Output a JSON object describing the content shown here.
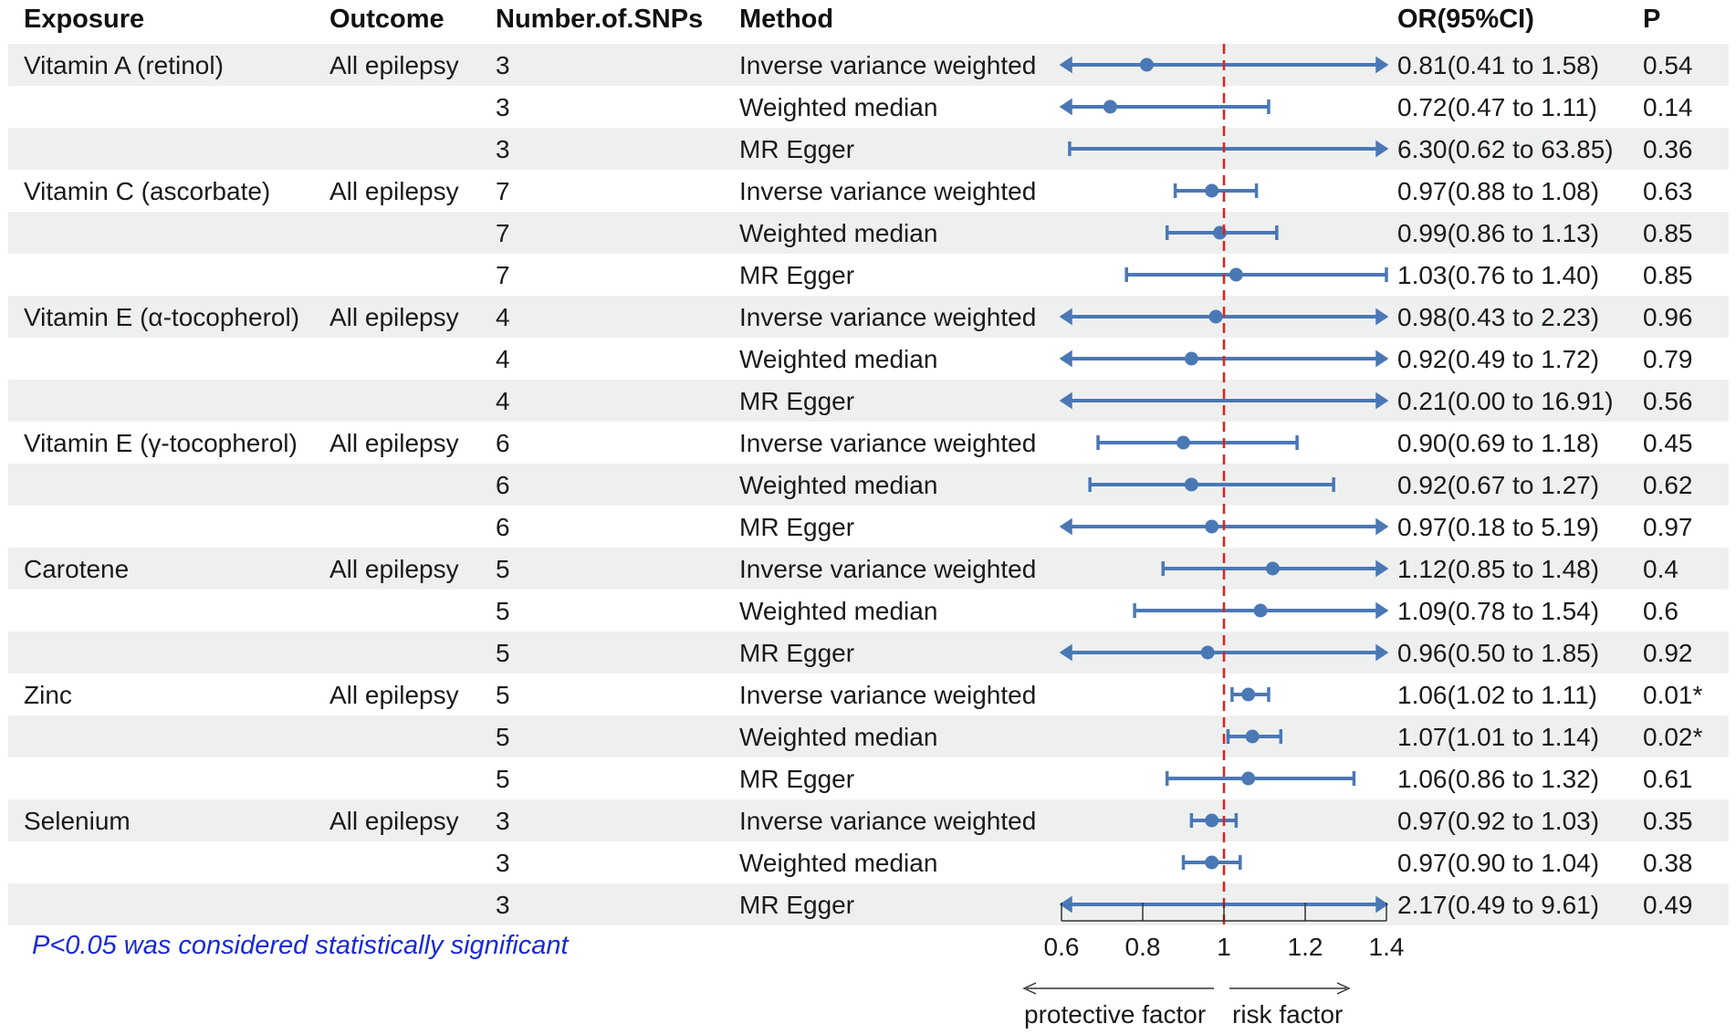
{
  "colors": {
    "band": "#eef0ef",
    "marker": "#4a78b5",
    "refline": "#e02020",
    "note": "#1a2ad6",
    "text": "#1a1a1a"
  },
  "headers": {
    "exposure": "Exposure",
    "outcome": "Outcome",
    "snps": "Number.of.SNPs",
    "method": "Method",
    "or": "OR(95%CI)",
    "p": "P"
  },
  "rows": [
    {
      "exposure": "Vitamin A (retinol)",
      "outcome": "All epilepsy",
      "snps": "3",
      "method": "Inverse variance weighted",
      "or_text": "0.81(0.41 to 1.58)",
      "p": "0.54"
    },
    {
      "exposure": "",
      "outcome": "",
      "snps": "3",
      "method": "Weighted median",
      "or_text": "0.72(0.47 to 1.11)",
      "p": "0.14"
    },
    {
      "exposure": "",
      "outcome": "",
      "snps": "3",
      "method": "MR Egger",
      "or_text": "6.30(0.62 to 63.85)",
      "p": "0.36"
    },
    {
      "exposure": "Vitamin C (ascorbate)",
      "outcome": "All epilepsy",
      "snps": "7",
      "method": "Inverse variance weighted",
      "or_text": "0.97(0.88 to 1.08)",
      "p": "0.63"
    },
    {
      "exposure": "",
      "outcome": "",
      "snps": "7",
      "method": "Weighted median",
      "or_text": "0.99(0.86 to 1.13)",
      "p": "0.85"
    },
    {
      "exposure": "",
      "outcome": "",
      "snps": "7",
      "method": "MR Egger",
      "or_text": "1.03(0.76 to 1.40)",
      "p": "0.85"
    },
    {
      "exposure": "Vitamin E (α-tocopherol)",
      "outcome": "All epilepsy",
      "snps": "4",
      "method": "Inverse variance weighted",
      "or_text": "0.98(0.43 to 2.23)",
      "p": "0.96"
    },
    {
      "exposure": "",
      "outcome": "",
      "snps": "4",
      "method": "Weighted median",
      "or_text": "0.92(0.49 to 1.72)",
      "p": "0.79"
    },
    {
      "exposure": "",
      "outcome": "",
      "snps": "4",
      "method": "MR Egger",
      "or_text": "0.21(0.00 to 16.91)",
      "p": "0.56"
    },
    {
      "exposure": "Vitamin E (γ-tocopherol)",
      "outcome": "All epilepsy",
      "snps": "6",
      "method": "Inverse variance weighted",
      "or_text": "0.90(0.69 to 1.18)",
      "p": "0.45"
    },
    {
      "exposure": "",
      "outcome": "",
      "snps": "6",
      "method": "Weighted median",
      "or_text": "0.92(0.67 to 1.27)",
      "p": "0.62"
    },
    {
      "exposure": "",
      "outcome": "",
      "snps": "6",
      "method": "MR Egger",
      "or_text": "0.97(0.18 to 5.19)",
      "p": "0.97"
    },
    {
      "exposure": "Carotene",
      "outcome": "All epilepsy",
      "snps": "5",
      "method": "Inverse variance weighted",
      "or_text": "1.12(0.85 to 1.48)",
      "p": "0.4"
    },
    {
      "exposure": "",
      "outcome": "",
      "snps": "5",
      "method": "Weighted median",
      "or_text": "1.09(0.78 to 1.54)",
      "p": "0.6"
    },
    {
      "exposure": "",
      "outcome": "",
      "snps": "5",
      "method": "MR Egger",
      "or_text": "0.96(0.50 to 1.85)",
      "p": "0.92"
    },
    {
      "exposure": "Zinc",
      "outcome": "All epilepsy",
      "snps": "5",
      "method": "Inverse variance weighted",
      "or_text": "1.06(1.02 to 1.11)",
      "p": "0.01*"
    },
    {
      "exposure": "",
      "outcome": "",
      "snps": "5",
      "method": "Weighted median",
      "or_text": "1.07(1.01 to 1.14)",
      "p": "0.02*"
    },
    {
      "exposure": "",
      "outcome": "",
      "snps": "5",
      "method": "MR Egger",
      "or_text": "1.06(0.86 to 1.32)",
      "p": "0.61"
    },
    {
      "exposure": "Selenium",
      "outcome": "All epilepsy",
      "snps": "3",
      "method": "Inverse variance weighted",
      "or_text": "0.97(0.92 to 1.03)",
      "p": "0.35"
    },
    {
      "exposure": "",
      "outcome": "",
      "snps": "3",
      "method": "Weighted median",
      "or_text": "0.97(0.90 to 1.04)",
      "p": "0.38"
    },
    {
      "exposure": "",
      "outcome": "",
      "snps": "3",
      "method": "MR Egger",
      "or_text": "2.17(0.49 to 9.61)",
      "p": "0.49"
    }
  ],
  "note": "P<0.05 was considered statistically significant",
  "direction": {
    "protective": "protective factor",
    "risk": "risk factor"
  },
  "chart_data": {
    "type": "forest",
    "title": "",
    "xlabel": "",
    "xlim": [
      0.6,
      1.4
    ],
    "ticks": [
      0.6,
      0.8,
      1.0,
      1.2,
      1.4
    ],
    "tick_labels": [
      "0.6",
      "0.8",
      "1",
      "1.2",
      "1.4"
    ],
    "reference_line": 1,
    "points": [
      {
        "or": 0.81,
        "lo": 0.41,
        "hi": 1.58
      },
      {
        "or": 0.72,
        "lo": 0.47,
        "hi": 1.11
      },
      {
        "or": 6.3,
        "lo": 0.62,
        "hi": 63.85
      },
      {
        "or": 0.97,
        "lo": 0.88,
        "hi": 1.08
      },
      {
        "or": 0.99,
        "lo": 0.86,
        "hi": 1.13
      },
      {
        "or": 1.03,
        "lo": 0.76,
        "hi": 1.4
      },
      {
        "or": 0.98,
        "lo": 0.43,
        "hi": 2.23
      },
      {
        "or": 0.92,
        "lo": 0.49,
        "hi": 1.72
      },
      {
        "or": 0.21,
        "lo": 0.0,
        "hi": 16.91
      },
      {
        "or": 0.9,
        "lo": 0.69,
        "hi": 1.18
      },
      {
        "or": 0.92,
        "lo": 0.67,
        "hi": 1.27
      },
      {
        "or": 0.97,
        "lo": 0.18,
        "hi": 5.19
      },
      {
        "or": 1.12,
        "lo": 0.85,
        "hi": 1.48
      },
      {
        "or": 1.09,
        "lo": 0.78,
        "hi": 1.54
      },
      {
        "or": 0.96,
        "lo": 0.5,
        "hi": 1.85
      },
      {
        "or": 1.06,
        "lo": 1.02,
        "hi": 1.11
      },
      {
        "or": 1.07,
        "lo": 1.01,
        "hi": 1.14
      },
      {
        "or": 1.06,
        "lo": 0.86,
        "hi": 1.32
      },
      {
        "or": 0.97,
        "lo": 0.92,
        "hi": 1.03
      },
      {
        "or": 0.97,
        "lo": 0.9,
        "hi": 1.04
      },
      {
        "or": 2.17,
        "lo": 0.49,
        "hi": 9.61
      }
    ]
  }
}
